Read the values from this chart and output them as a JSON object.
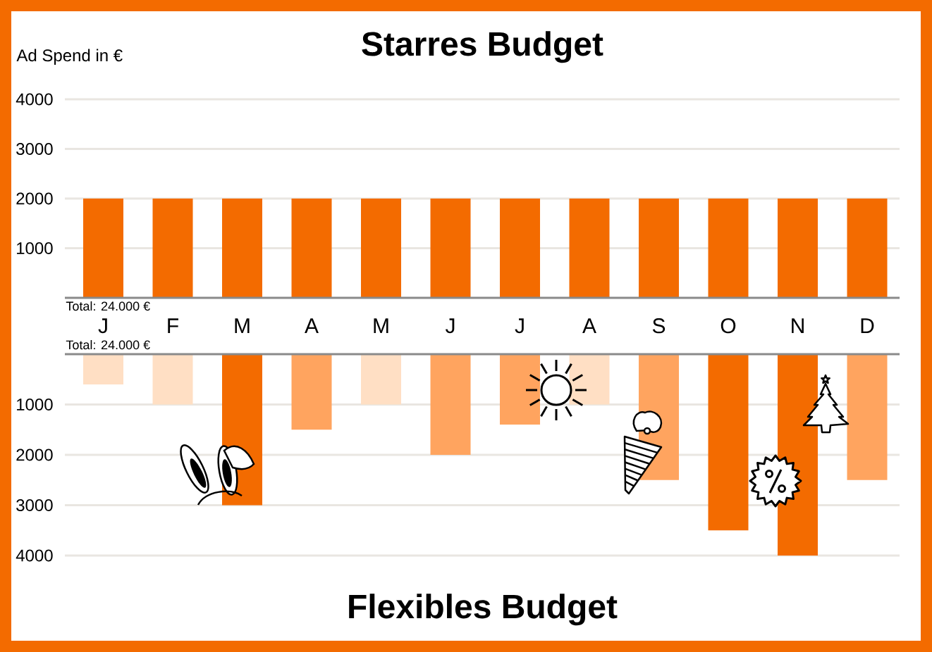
{
  "chart_data": [
    {
      "type": "bar",
      "title": "Starres Budget",
      "ylabel": "Ad Spend in €",
      "categories": [
        "J",
        "F",
        "M",
        "A",
        "M",
        "J",
        "J",
        "A",
        "S",
        "O",
        "N",
        "D"
      ],
      "values": [
        2000,
        2000,
        2000,
        2000,
        2000,
        2000,
        2000,
        2000,
        2000,
        2000,
        2000,
        2000
      ],
      "color": "#f36b00",
      "ylim": [
        0,
        4000
      ],
      "yticks": [
        1000,
        2000,
        3000,
        4000
      ],
      "grid": "y",
      "annotations": [
        "Total: 24.000 €"
      ]
    },
    {
      "type": "bar",
      "title": "Flexibles Budget",
      "categories": [
        null,
        null,
        null,
        null,
        null,
        null,
        null,
        null,
        null,
        null,
        null,
        null
      ],
      "values": [
        600,
        1000,
        3000,
        1500,
        1000,
        2000,
        1400,
        1000,
        2500,
        3500,
        4000,
        2500
      ],
      "colors": [
        "#ffdfc4",
        "#ffdfc4",
        "#f36b00",
        "#ffa45f",
        "#ffdfc4",
        "#ffa45f",
        "#ffa45f",
        "#ffdfc4",
        "#ffa45f",
        "#f36b00",
        "#f36b00",
        "#ffa45f"
      ],
      "ylim": [
        4000,
        0
      ],
      "yticks": [
        1000,
        2000,
        3000,
        4000
      ],
      "grid": "y",
      "tick_labels": "y",
      "annotations": [
        "Total: 24.000 €"
      ]
    }
  ]
}
